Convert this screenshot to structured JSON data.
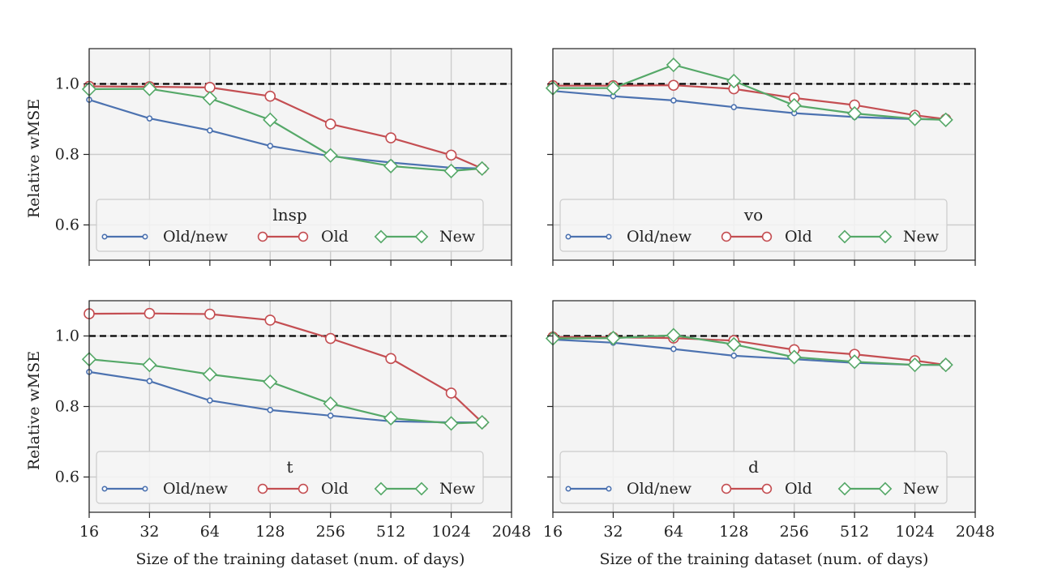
{
  "chart_data": [
    {
      "type": "line",
      "title": "lnsp",
      "xscale": "log2",
      "xlim": [
        16,
        2048
      ],
      "ylim": [
        0.5,
        1.1
      ],
      "xticks": [
        "16",
        "32",
        "64",
        "128",
        "256",
        "512",
        "1024",
        "2048"
      ],
      "yticks": [
        "0.6",
        "0.8",
        "1.0"
      ],
      "xlabel": "",
      "ylabel": "Relative wMSE",
      "reference_line": 1.0,
      "legend_title": "lnsp",
      "legend_position": "lower-center",
      "series": [
        {
          "name": "Old/new",
          "x": [
            16,
            32,
            64,
            128,
            256,
            512,
            1024,
            1460
          ],
          "values": [
            0.955,
            0.902,
            0.868,
            0.824,
            0.795,
            0.777,
            0.762,
            0.76
          ]
        },
        {
          "name": "Old",
          "x": [
            16,
            32,
            64,
            128,
            256,
            512,
            1024,
            1460
          ],
          "values": [
            0.993,
            0.992,
            0.99,
            0.965,
            0.886,
            0.847,
            0.798,
            0.76
          ]
        },
        {
          "name": "New",
          "x": [
            16,
            32,
            64,
            128,
            256,
            512,
            1024,
            1460
          ],
          "values": [
            0.985,
            0.986,
            0.959,
            0.898,
            0.797,
            0.767,
            0.753,
            0.76
          ]
        }
      ]
    },
    {
      "type": "line",
      "title": "vo",
      "xscale": "log2",
      "xlim": [
        16,
        2048
      ],
      "ylim": [
        0.5,
        1.1
      ],
      "xticks": [
        "16",
        "32",
        "64",
        "128",
        "256",
        "512",
        "1024",
        "2048"
      ],
      "yticks": [
        "0.6",
        "0.8",
        "1.0"
      ],
      "xlabel": "",
      "ylabel": "",
      "reference_line": 1.0,
      "legend_title": "vo",
      "legend_position": "lower-center",
      "series": [
        {
          "name": "Old/new",
          "x": [
            16,
            32,
            64,
            128,
            256,
            512,
            1024,
            1460
          ],
          "values": [
            0.98,
            0.965,
            0.953,
            0.934,
            0.917,
            0.906,
            0.9,
            0.9
          ]
        },
        {
          "name": "Old",
          "x": [
            16,
            32,
            64,
            128,
            256,
            512,
            1024,
            1460
          ],
          "values": [
            0.995,
            0.995,
            0.996,
            0.986,
            0.96,
            0.94,
            0.911,
            0.9
          ]
        },
        {
          "name": "New",
          "x": [
            16,
            32,
            64,
            128,
            256,
            512,
            1024,
            1460
          ],
          "values": [
            0.988,
            0.988,
            1.054,
            1.008,
            0.939,
            0.916,
            0.901,
            0.898
          ]
        }
      ]
    },
    {
      "type": "line",
      "title": "t",
      "xscale": "log2",
      "xlim": [
        16,
        2048
      ],
      "ylim": [
        0.5,
        1.1
      ],
      "xticks": [
        "16",
        "32",
        "64",
        "128",
        "256",
        "512",
        "1024",
        "2048"
      ],
      "yticks": [
        "0.6",
        "0.8",
        "1.0"
      ],
      "xlabel": "Size of the training dataset (num. of days)",
      "ylabel": "Relative wMSE",
      "reference_line": 1.0,
      "legend_title": "t",
      "legend_position": "lower-center",
      "series": [
        {
          "name": "Old/new",
          "x": [
            16,
            32,
            64,
            128,
            256,
            512,
            1024,
            1460
          ],
          "values": [
            0.898,
            0.872,
            0.817,
            0.79,
            0.774,
            0.758,
            0.755,
            0.755
          ]
        },
        {
          "name": "Old",
          "x": [
            16,
            32,
            64,
            128,
            256,
            512,
            1024,
            1460
          ],
          "values": [
            1.063,
            1.064,
            1.062,
            1.045,
            0.993,
            0.936,
            0.838,
            0.755
          ]
        },
        {
          "name": "New",
          "x": [
            16,
            32,
            64,
            128,
            256,
            512,
            1024,
            1460
          ],
          "values": [
            0.934,
            0.918,
            0.891,
            0.87,
            0.808,
            0.767,
            0.752,
            0.755
          ]
        }
      ]
    },
    {
      "type": "line",
      "title": "d",
      "xscale": "log2",
      "xlim": [
        16,
        2048
      ],
      "ylim": [
        0.5,
        1.1
      ],
      "xticks": [
        "16",
        "32",
        "64",
        "128",
        "256",
        "512",
        "1024",
        "2048"
      ],
      "yticks": [
        "0.6",
        "0.8",
        "1.0"
      ],
      "xlabel": "Size of the training dataset (num. of days)",
      "ylabel": "",
      "reference_line": 1.0,
      "legend_title": "d",
      "legend_position": "lower-center",
      "series": [
        {
          "name": "Old/new",
          "x": [
            16,
            32,
            64,
            128,
            256,
            512,
            1024,
            1460
          ],
          "values": [
            0.99,
            0.981,
            0.963,
            0.944,
            0.934,
            0.924,
            0.918,
            0.918
          ]
        },
        {
          "name": "Old",
          "x": [
            16,
            32,
            64,
            128,
            256,
            512,
            1024,
            1460
          ],
          "values": [
            0.997,
            0.996,
            0.994,
            0.987,
            0.961,
            0.948,
            0.93,
            0.918
          ]
        },
        {
          "name": "New",
          "x": [
            16,
            32,
            64,
            128,
            256,
            512,
            1024,
            1460
          ],
          "values": [
            0.993,
            0.994,
            1.002,
            0.976,
            0.94,
            0.927,
            0.918,
            0.918
          ]
        }
      ]
    }
  ],
  "colors": {
    "Old/new": "#4c72b0",
    "Old": "#c44e52",
    "New": "#55a868",
    "panel_background": "#f4f4f4",
    "grid": "#cccccc",
    "reference_line": "#000000"
  }
}
